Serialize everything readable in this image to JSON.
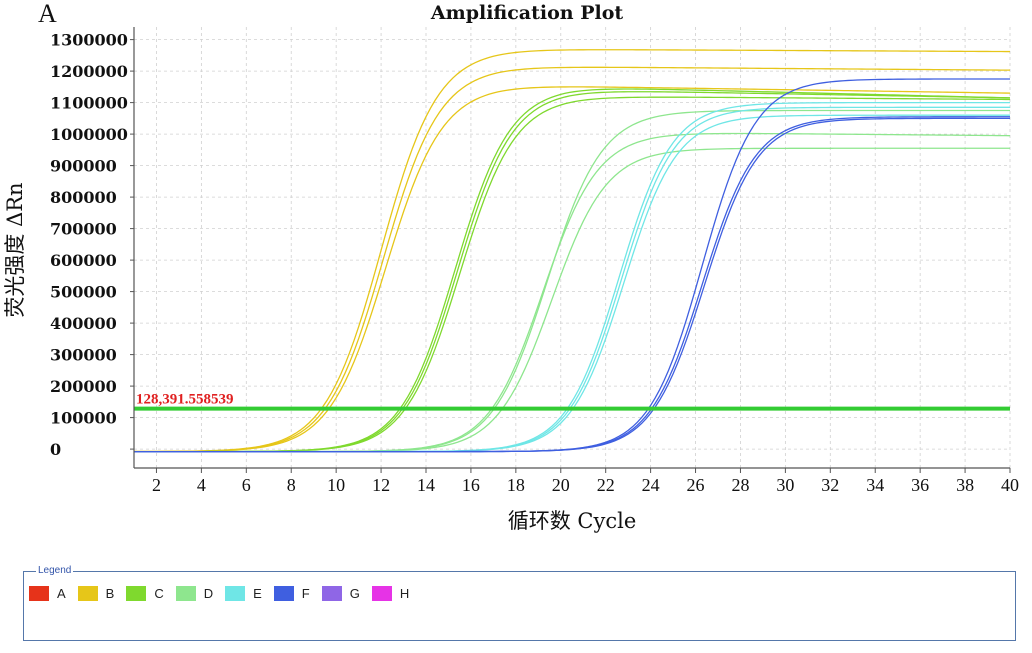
{
  "panel_letter": "A",
  "chart_data": {
    "type": "line",
    "title": "Amplification Plot",
    "xlabel": "循环数 Cycle",
    "ylabel": "荧光强度 ΔRn",
    "xlim": [
      1,
      40
    ],
    "ylim": [
      -60000,
      1340000
    ],
    "xticks": [
      2,
      4,
      6,
      8,
      10,
      12,
      14,
      16,
      18,
      20,
      22,
      24,
      26,
      28,
      30,
      32,
      34,
      36,
      38,
      40
    ],
    "xtick_labels": [
      "2",
      "4",
      "6",
      "8",
      "10",
      "12",
      "14",
      "16",
      "18",
      "20",
      "22",
      "24",
      "26",
      "28",
      "30",
      "32",
      "34",
      "36",
      "38",
      "40"
    ],
    "yticks": [
      0,
      100000,
      200000,
      300000,
      400000,
      500000,
      600000,
      700000,
      800000,
      900000,
      1000000,
      1100000,
      1200000,
      1300000
    ],
    "ytick_labels": [
      "0",
      "100000",
      "200000",
      "300000",
      "400000",
      "500000",
      "600000",
      "700000",
      "800000",
      "900000",
      "1000000",
      "1100000",
      "1200000",
      "1300000"
    ],
    "grid": true,
    "threshold": {
      "value": 128391.558539,
      "label": "128,391.558539",
      "color": "#33cc33"
    },
    "series": [
      {
        "name": "B",
        "color": "#e6c619",
        "curves": [
          {
            "plateau": 1270000,
            "midpoint": 12.0,
            "steepness": 0.8,
            "drift": -8000
          },
          {
            "plateau": 1215000,
            "midpoint": 12.1,
            "steepness": 0.8,
            "drift": -12000
          },
          {
            "plateau": 1155000,
            "midpoint": 12.2,
            "steepness": 0.8,
            "drift": -25000
          }
        ]
      },
      {
        "name": "C",
        "color": "#7fd92e",
        "curves": [
          {
            "plateau": 1150000,
            "midpoint": 15.3,
            "steepness": 0.82,
            "drift": -35000
          },
          {
            "plateau": 1140000,
            "midpoint": 15.4,
            "steepness": 0.82,
            "drift": -25000
          },
          {
            "plateau": 1120000,
            "midpoint": 15.5,
            "steepness": 0.82,
            "drift": -10000
          }
        ]
      },
      {
        "name": "D",
        "color": "#8ee68e",
        "curves": [
          {
            "plateau": 1005000,
            "midpoint": 19.2,
            "steepness": 0.82,
            "drift": -10000
          },
          {
            "plateau": 1075000,
            "midpoint": 19.4,
            "steepness": 0.82,
            "drift": 0
          },
          {
            "plateau": 955000,
            "midpoint": 19.6,
            "steepness": 0.82,
            "drift": 0
          }
        ]
      },
      {
        "name": "E",
        "color": "#6fe6e6",
        "curves": [
          {
            "plateau": 1100000,
            "midpoint": 22.6,
            "steepness": 0.85,
            "drift": 0
          },
          {
            "plateau": 1085000,
            "midpoint": 22.7,
            "steepness": 0.85,
            "drift": 0
          },
          {
            "plateau": 1060000,
            "midpoint": 22.8,
            "steepness": 0.85,
            "drift": 0
          }
        ]
      },
      {
        "name": "F",
        "color": "#3f5fe0",
        "curves": [
          {
            "plateau": 1175000,
            "midpoint": 26.3,
            "steepness": 0.85,
            "drift": 0
          },
          {
            "plateau": 1055000,
            "midpoint": 26.3,
            "steepness": 0.85,
            "drift": 0
          },
          {
            "plateau": 1050000,
            "midpoint": 26.4,
            "steepness": 0.85,
            "drift": 0
          }
        ]
      }
    ]
  },
  "legend": {
    "title": "Legend",
    "items": [
      {
        "label": "A",
        "color": "#e6331a"
      },
      {
        "label": "B",
        "color": "#e6c619"
      },
      {
        "label": "C",
        "color": "#7fd92e"
      },
      {
        "label": "D",
        "color": "#8ee68e"
      },
      {
        "label": "E",
        "color": "#6fe6e6"
      },
      {
        "label": "F",
        "color": "#3f5fe0"
      },
      {
        "label": "G",
        "color": "#8f66e6"
      },
      {
        "label": "H",
        "color": "#e633e6"
      }
    ]
  }
}
